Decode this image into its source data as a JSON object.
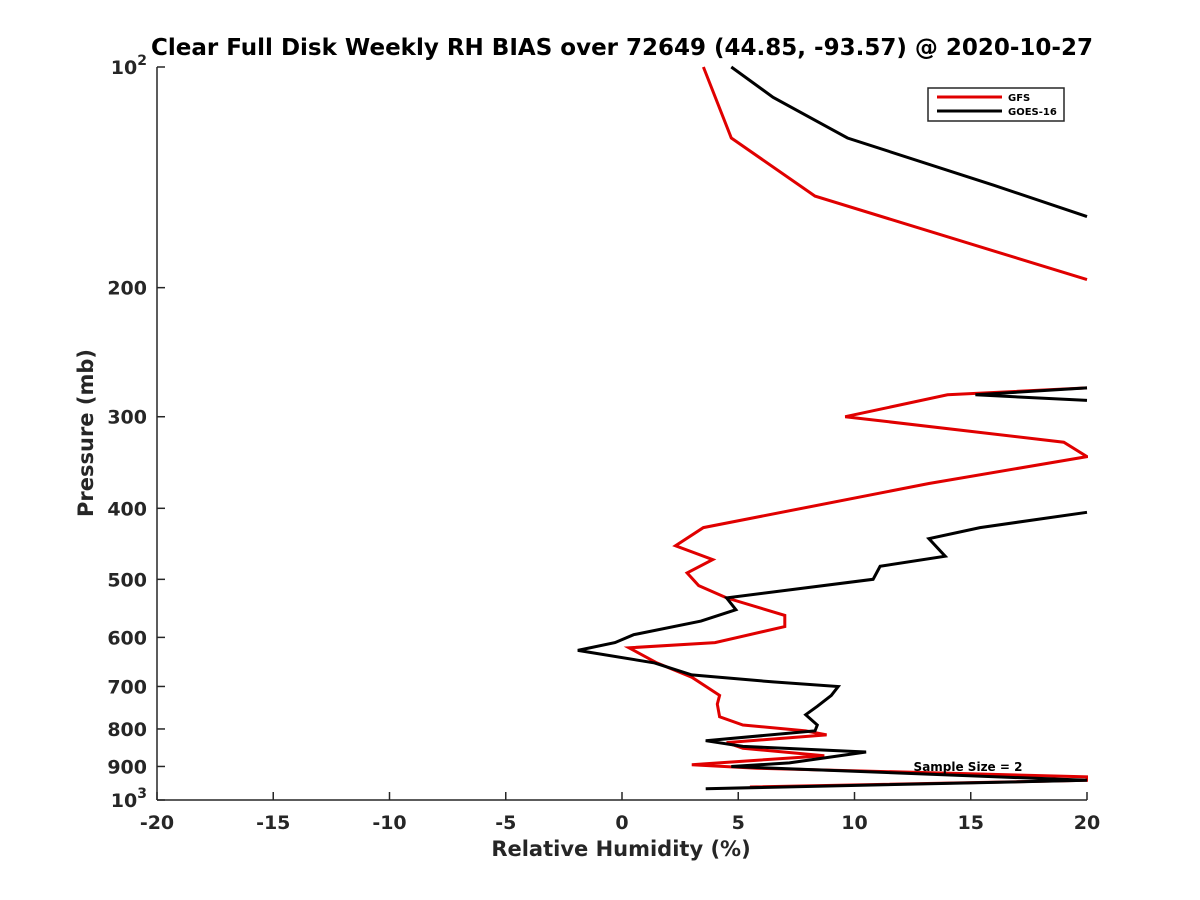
{
  "chart_data": {
    "type": "line",
    "title": "Clear Full Disk Weekly RH BIAS over 72649 (44.85, -93.57) @ 2020-10-27",
    "xlabel": "Relative Humidity (%)",
    "ylabel": "Pressure (mb)",
    "xlim": [
      -20,
      20
    ],
    "ylim": [
      100,
      1000
    ],
    "y_scale": "log",
    "y_reversed": true,
    "grid": false,
    "legend_position": "top-right",
    "x_ticks": [
      -20,
      -15,
      -10,
      -5,
      0,
      5,
      10,
      15,
      20
    ],
    "y_ticks": [
      {
        "value": 100,
        "base": "10",
        "exp": "2"
      },
      {
        "value": 200,
        "label": "200"
      },
      {
        "value": 300,
        "label": "300"
      },
      {
        "value": 400,
        "label": "400"
      },
      {
        "value": 500,
        "label": "500"
      },
      {
        "value": 600,
        "label": "600"
      },
      {
        "value": 700,
        "label": "700"
      },
      {
        "value": 800,
        "label": "800"
      },
      {
        "value": 900,
        "label": "900"
      },
      {
        "value": 1000,
        "base": "10",
        "exp": "3"
      }
    ],
    "annotation": "Sample Size = 2",
    "series": [
      {
        "name": "GFS",
        "color": "#e00000",
        "segments": [
          [
            [
              3.5,
              100
            ],
            [
              4.7,
              125
            ],
            [
              8.3,
              150
            ],
            [
              20,
              195
            ]
          ],
          [
            [
              20,
              274
            ],
            [
              14,
              280
            ],
            [
              9.6,
              300
            ],
            [
              19,
              325
            ],
            [
              20,
              340
            ],
            [
              13.2,
              370
            ],
            [
              3.5,
              425
            ],
            [
              2.3,
              450
            ],
            [
              3.9,
              470
            ],
            [
              2.8,
              490
            ],
            [
              3.3,
              510
            ],
            [
              4.5,
              530
            ],
            [
              7,
              560
            ],
            [
              7,
              580
            ],
            [
              4,
              610
            ],
            [
              0.3,
              620
            ],
            [
              1.5,
              650
            ],
            [
              3,
              680
            ],
            [
              4.2,
              720
            ],
            [
              4.1,
              740
            ],
            [
              4.2,
              770
            ],
            [
              5.2,
              790
            ],
            [
              7.9,
              805
            ],
            [
              8.8,
              815
            ],
            [
              4.5,
              835
            ],
            [
              5.2,
              850
            ],
            [
              8.7,
              870
            ],
            [
              3,
              895
            ],
            [
              5.8,
              905
            ],
            [
              20,
              930
            ],
            [
              20,
              940
            ],
            [
              5.5,
              960
            ]
          ]
        ]
      },
      {
        "name": "GOES-16",
        "color": "#000000",
        "segments": [
          [
            [
              4.7,
              100
            ],
            [
              6.5,
              110
            ],
            [
              9.7,
              125
            ],
            [
              16,
              145
            ],
            [
              20,
              160
            ]
          ],
          [
            [
              20,
              274
            ],
            [
              15.2,
              280
            ],
            [
              20,
              285
            ]
          ],
          [
            [
              20,
              405
            ],
            [
              15.4,
              425
            ],
            [
              13.2,
              440
            ],
            [
              13.9,
              465
            ],
            [
              11.1,
              480
            ],
            [
              10.8,
              500
            ],
            [
              4.5,
              530
            ],
            [
              4.9,
              550
            ],
            [
              3.4,
              570
            ],
            [
              0.5,
              595
            ],
            [
              -0.3,
              610
            ],
            [
              -1.9,
              625
            ],
            [
              1.4,
              650
            ],
            [
              3,
              675
            ],
            [
              6.5,
              690
            ],
            [
              9.3,
              700
            ],
            [
              9,
              720
            ],
            [
              8.4,
              745
            ],
            [
              7.9,
              765
            ],
            [
              8.4,
              790
            ],
            [
              8.3,
              805
            ],
            [
              3.6,
              830
            ],
            [
              5.2,
              845
            ],
            [
              10.5,
              860
            ],
            [
              7.2,
              890
            ],
            [
              4.7,
              900
            ],
            [
              20,
              940
            ],
            [
              3.6,
              965
            ]
          ]
        ]
      }
    ]
  }
}
